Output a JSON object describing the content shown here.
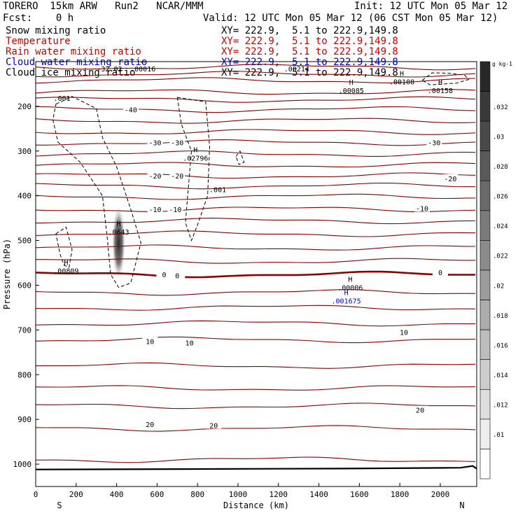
{
  "header": {
    "model": "TORERO  15km ARW   Run2   NCAR/MMM",
    "init": "Init: 12 UTC Mon 05 Mar 12",
    "fcst": "Fcst:    0 h",
    "valid": "Valid: 12 UTC Mon 05 Mar 12 (06 CST Mon 05 Mar 12)"
  },
  "legend": [
    {
      "label": "Snow mixing ratio",
      "xy": "XY= 222.9,  5.1 to 222.9,149.8",
      "color": "#000000"
    },
    {
      "label": "Temperature",
      "xy": "XY= 222.9,  5.1 to 222.9,149.8",
      "color": "#cc0000"
    },
    {
      "label": "Rain water mixing ratio",
      "xy": "XY= 222.9,  5.1 to 222.9,149.8",
      "color": "#cc0000"
    },
    {
      "label": "Cloud water mixing ratio",
      "xy": "XY= 222.9,  5.1 to 222.9,149.8",
      "color": "#0000cc"
    },
    {
      "label": "Cloud ice mixing ratio",
      "xy": "XY= 222.9,  5.1 to 222.9,149.8",
      "color": "#000000"
    }
  ],
  "chart_data": {
    "type": "cross-section contour",
    "xlabel": "Distance (km)",
    "ylabel": "Pressure (hPa)",
    "xlim": [
      0,
      2180
    ],
    "ylim": [
      1050,
      100
    ],
    "x_ticks": [
      0,
      200,
      400,
      600,
      800,
      1000,
      1200,
      1400,
      1600,
      1800,
      2000
    ],
    "y_ticks": [
      200,
      300,
      400,
      500,
      600,
      700,
      800,
      900,
      1000
    ],
    "direction_labels": {
      "left": "S",
      "right": "N"
    },
    "temperature_color": "#8b0000",
    "temperature_isotherms": [
      {
        "pressure": 112,
        "value": null
      },
      {
        "pressure": 128,
        "value": null
      },
      {
        "pressure": 142,
        "value": null
      },
      {
        "pressure": 168,
        "value": null
      },
      {
        "pressure": 185,
        "value": null
      },
      {
        "pressure": 207,
        "value": -40
      },
      {
        "pressure": 232,
        "value": null
      },
      {
        "pressure": 257,
        "value": null
      },
      {
        "pressure": 281,
        "value": -30
      },
      {
        "pressure": 306,
        "value": null
      },
      {
        "pressure": 331,
        "value": null
      },
      {
        "pressure": 355,
        "value": -20
      },
      {
        "pressure": 378,
        "value": null
      },
      {
        "pressure": 402,
        "value": null
      },
      {
        "pressure": 430,
        "value": -10
      },
      {
        "pressure": 456,
        "value": null
      },
      {
        "pressure": 485,
        "value": null
      },
      {
        "pressure": 516,
        "value": null
      },
      {
        "pressure": 546,
        "value": null
      },
      {
        "pressure": 576,
        "value": 0
      },
      {
        "pressure": 616,
        "value": null
      },
      {
        "pressure": 650,
        "value": null
      },
      {
        "pressure": 685,
        "value": null
      },
      {
        "pressure": 722,
        "value": 10
      },
      {
        "pressure": 780,
        "value": null
      },
      {
        "pressure": 830,
        "value": null
      },
      {
        "pressure": 870,
        "value": null
      },
      {
        "pressure": 920,
        "value": 20
      },
      {
        "pressure": 990,
        "value": null
      }
    ],
    "temperature_labels": [
      {
        "x": 470,
        "p": 207,
        "text": "-40"
      },
      {
        "x": 590,
        "p": 281,
        "text": "-30"
      },
      {
        "x": 700,
        "p": 281,
        "text": "-30"
      },
      {
        "x": 1970,
        "p": 281,
        "text": "-30"
      },
      {
        "x": 590,
        "p": 355,
        "text": "-20"
      },
      {
        "x": 700,
        "p": 355,
        "text": "-20"
      },
      {
        "x": 2050,
        "p": 361,
        "text": "-20"
      },
      {
        "x": 590,
        "p": 430,
        "text": "-10"
      },
      {
        "x": 690,
        "p": 430,
        "text": "-10"
      },
      {
        "x": 1910,
        "p": 428,
        "text": "-10"
      },
      {
        "x": 635,
        "p": 576,
        "text": "0"
      },
      {
        "x": 700,
        "p": 578,
        "text": "0"
      },
      {
        "x": 2000,
        "p": 571,
        "text": "0"
      },
      {
        "x": 565,
        "p": 725,
        "text": "10"
      },
      {
        "x": 760,
        "p": 728,
        "text": "10"
      },
      {
        "x": 1820,
        "p": 705,
        "text": "10"
      },
      {
        "x": 565,
        "p": 911,
        "text": "20"
      },
      {
        "x": 880,
        "p": 913,
        "text": "20"
      },
      {
        "x": 1900,
        "p": 879,
        "text": "20"
      }
    ],
    "snow_contours": [
      {
        "label": ".001",
        "label_x": 130,
        "label_p": 188
      },
      {
        "label": ".001",
        "label_x": 900,
        "label_p": 392
      }
    ],
    "extrema": [
      {
        "mark": "H",
        "value": ".00016",
        "x": 530,
        "p": 106,
        "color": "#000000"
      },
      {
        "mark": "",
        "value": "-32.02",
        "x": 365,
        "p": 106,
        "color": "#000000"
      },
      {
        "mark": "",
        "value": ".00214",
        "x": 1290,
        "p": 106,
        "color": "#000000"
      },
      {
        "mark": "H",
        "value": ".00085",
        "x": 1560,
        "p": 155,
        "color": "#000000"
      },
      {
        "mark": "H",
        "value": ".00108",
        "x": 1810,
        "p": 135,
        "color": "#000000"
      },
      {
        "mark": "H",
        "value": ".00158",
        "x": 2000,
        "p": 155,
        "color": "#000000"
      },
      {
        "mark": "H",
        "value": ".02796",
        "x": 790,
        "p": 306,
        "color": "#000000"
      },
      {
        "mark": "H",
        "value": ".0643",
        "x": 410,
        "p": 471,
        "color": "#000000"
      },
      {
        "mark": "H",
        "value": ".00809",
        "x": 150,
        "p": 558,
        "color": "#000000"
      },
      {
        "mark": "H",
        "value": ".00006",
        "x": 1555,
        "p": 595,
        "color": "#000000"
      },
      {
        "mark": "H",
        "value": ".001675",
        "x": 1535,
        "p": 625,
        "color": "#0000cc"
      }
    ],
    "colorbar": {
      "unit": "g kg-1",
      "ticks": [
        ".032",
        ".03",
        ".028",
        ".026",
        ".024",
        ".022",
        ".02",
        ".018",
        ".016",
        ".014",
        ".012",
        ".01"
      ]
    }
  }
}
